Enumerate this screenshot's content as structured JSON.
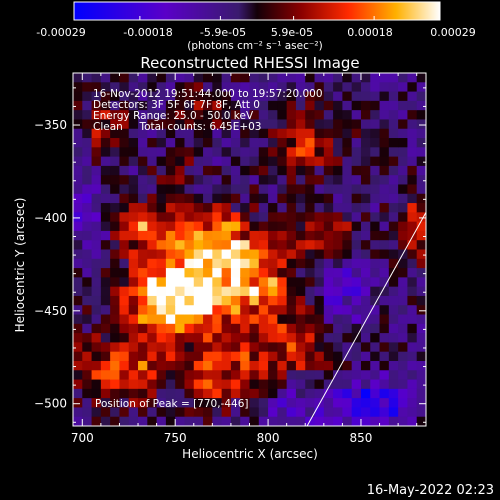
{
  "colorbar": {
    "ticks": [
      "-0.00029",
      "-0.00018",
      "-5.9e-05",
      "5.9e-05",
      "0.00018",
      "0.00029"
    ],
    "unit_label": "(photons cm⁻² s⁻¹ asec⁻²)",
    "range": [
      -0.00029,
      0.00029
    ]
  },
  "chart_data": {
    "type": "heatmap",
    "title": "Reconstructed RHESSI Image",
    "xlabel": "Heliocentric X (arcsec)",
    "ylabel": "Heliocentric Y (arcsec)",
    "xlim": [
      695,
      885
    ],
    "ylim": [
      -512,
      -322
    ],
    "xticks": [
      700,
      750,
      800,
      850
    ],
    "yticks": [
      -350,
      -400,
      -450,
      -500
    ],
    "annotations": [
      "16-Nov-2012 19:51:44.000 to 19:57:20.000",
      "Detectors: 3F 5F 6F 7F 8F, Att 0",
      "Energy Range: 25.0 - 50.0 keV",
      "Clean     Total counts: 6.45E+03"
    ],
    "peak_label": "Position of Peak = [770,-446]",
    "peak": [
      770,
      -446
    ],
    "limb_line": [
      [
        821,
        -512
      ],
      [
        885,
        -397
      ]
    ],
    "grid_size": 38,
    "grid_range": [
      -0.00029,
      0.00029
    ],
    "blobs": [
      {
        "x": 770,
        "y": -415,
        "sx": 18,
        "sy": 14,
        "a": 0.00029
      },
      {
        "x": 760,
        "y": -446,
        "sx": 16,
        "sy": 12,
        "a": 0.00027
      },
      {
        "x": 740,
        "y": -440,
        "sx": 14,
        "sy": 14,
        "a": 0.0002
      },
      {
        "x": 795,
        "y": -438,
        "sx": 15,
        "sy": 14,
        "a": 0.00021
      },
      {
        "x": 720,
        "y": -480,
        "sx": 18,
        "sy": 14,
        "a": 0.00019
      },
      {
        "x": 775,
        "y": -482,
        "sx": 16,
        "sy": 12,
        "a": 0.00021
      },
      {
        "x": 815,
        "y": -470,
        "sx": 14,
        "sy": 12,
        "a": 0.00016
      },
      {
        "x": 733,
        "y": -405,
        "sx": 10,
        "sy": 10,
        "a": 0.00018
      },
      {
        "x": 830,
        "y": -410,
        "sx": 12,
        "sy": 10,
        "a": 0.00015
      },
      {
        "x": 820,
        "y": -360,
        "sx": 15,
        "sy": 12,
        "a": 0.00015
      },
      {
        "x": 880,
        "y": -405,
        "sx": 8,
        "sy": 12,
        "a": 0.00016
      },
      {
        "x": 712,
        "y": -350,
        "sx": 10,
        "sy": 10,
        "a": 0.00011
      },
      {
        "x": 765,
        "y": -340,
        "sx": 9,
        "sy": 9,
        "a": 0.0001
      },
      {
        "x": 748,
        "y": -375,
        "sx": 8,
        "sy": 8,
        "a": 9e-05
      }
    ],
    "cold_spots": [
      {
        "x": 855,
        "y": -500,
        "sx": 18,
        "sy": 10,
        "a": -0.00018
      },
      {
        "x": 840,
        "y": -440,
        "sx": 10,
        "sy": 12,
        "a": -0.00012
      },
      {
        "x": 700,
        "y": -400,
        "sx": 9,
        "sy": 12,
        "a": -0.0001
      },
      {
        "x": 810,
        "y": -500,
        "sx": 10,
        "sy": 8,
        "a": -0.00011
      }
    ]
  },
  "footer": {
    "timestamp": "16-May-2022 02:23"
  }
}
